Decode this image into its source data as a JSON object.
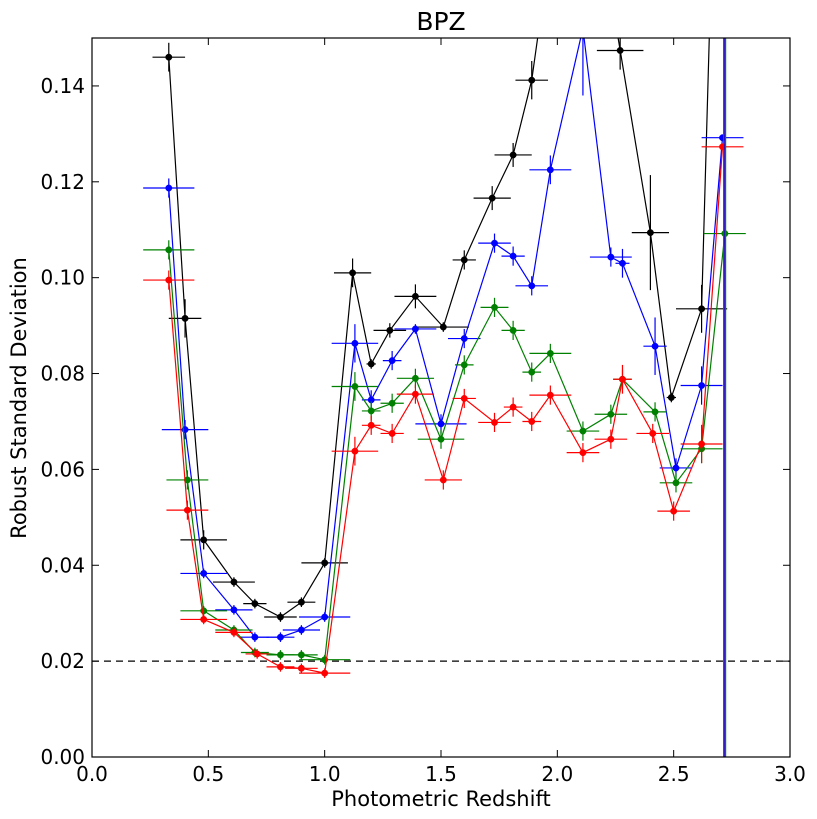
{
  "chart_data": {
    "type": "line",
    "title": "BPZ",
    "xlabel": "Photometric Redshift",
    "ylabel": "Robust Standard Deviation",
    "xlim": [
      0.0,
      3.0
    ],
    "ylim": [
      0.0,
      0.15
    ],
    "xticks": [
      "0.0",
      "0.5",
      "1.0",
      "1.5",
      "2.0",
      "2.5",
      "3.0"
    ],
    "yticks": [
      "0.00",
      "0.02",
      "0.04",
      "0.06",
      "0.08",
      "0.10",
      "0.12",
      "0.14"
    ],
    "grid": false,
    "reference_line": {
      "y": 0.02,
      "style": "dashed",
      "color": "#000000"
    },
    "series": [
      {
        "color": "#000000",
        "points": [
          {
            "x": 0.33,
            "y": 0.146,
            "xerr": 0.07,
            "yerr": 0.003
          },
          {
            "x": 0.4,
            "y": 0.0915,
            "xerr": 0.07,
            "yerr": 0.004
          },
          {
            "x": 0.48,
            "y": 0.0453,
            "xerr": 0.1,
            "yerr": 0.002
          },
          {
            "x": 0.61,
            "y": 0.0365,
            "xerr": 0.09,
            "yerr": 0.001
          },
          {
            "x": 0.7,
            "y": 0.032,
            "xerr": 0.05,
            "yerr": 0.001
          },
          {
            "x": 0.81,
            "y": 0.0292,
            "xerr": 0.07,
            "yerr": 0.001
          },
          {
            "x": 0.9,
            "y": 0.0323,
            "xerr": 0.06,
            "yerr": 0.001
          },
          {
            "x": 1.0,
            "y": 0.0405,
            "xerr": 0.1,
            "yerr": 0.001
          },
          {
            "x": 1.12,
            "y": 0.101,
            "xerr": 0.08,
            "yerr": 0.003
          },
          {
            "x": 1.2,
            "y": 0.082,
            "xerr": 0.02,
            "yerr": 0.001
          },
          {
            "x": 1.28,
            "y": 0.089,
            "xerr": 0.07,
            "yerr": 0.0015
          },
          {
            "x": 1.39,
            "y": 0.0961,
            "xerr": 0.09,
            "yerr": 0.0025
          },
          {
            "x": 1.51,
            "y": 0.0897,
            "xerr": 0.11,
            "yerr": 0.001
          },
          {
            "x": 1.6,
            "y": 0.1037,
            "xerr": 0.05,
            "yerr": 0.002
          },
          {
            "x": 1.72,
            "y": 0.1166,
            "xerr": 0.08,
            "yerr": 0.0025
          },
          {
            "x": 1.81,
            "y": 0.1256,
            "xerr": 0.08,
            "yerr": 0.0025
          },
          {
            "x": 1.89,
            "y": 0.1412,
            "xerr": 0.07,
            "yerr": 0.004
          },
          {
            "x": 1.95,
            "y": 0.162,
            "xerr": 0.05,
            "yerr": 0.005
          },
          {
            "x": 2.22,
            "y": 0.162,
            "xerr": 0.05,
            "yerr": 0.005
          },
          {
            "x": 2.27,
            "y": 0.1474,
            "xerr": 0.1,
            "yerr": 0.004
          },
          {
            "x": 2.4,
            "y": 0.1094,
            "xerr": 0.08,
            "yerr": 0.012
          },
          {
            "x": 2.49,
            "y": 0.075,
            "xerr": 0.02,
            "yerr": 0.001
          },
          {
            "x": 2.62,
            "y": 0.0935,
            "xerr": 0.11,
            "yerr": 0.005
          },
          {
            "x": 2.66,
            "y": 0.162,
            "xerr": 0.0,
            "yerr": 0.0
          }
        ]
      },
      {
        "color": "#0000ff",
        "points": [
          {
            "x": 0.33,
            "y": 0.1187,
            "xerr": 0.11,
            "yerr": 0.002
          },
          {
            "x": 0.4,
            "y": 0.0683,
            "xerr": 0.1,
            "yerr": 0.002
          },
          {
            "x": 0.48,
            "y": 0.0383,
            "xerr": 0.1,
            "yerr": 0.001
          },
          {
            "x": 0.61,
            "y": 0.0307,
            "xerr": 0.08,
            "yerr": 0.001
          },
          {
            "x": 0.7,
            "y": 0.025,
            "xerr": 0.06,
            "yerr": 0.001
          },
          {
            "x": 0.81,
            "y": 0.025,
            "xerr": 0.06,
            "yerr": 0.001
          },
          {
            "x": 0.9,
            "y": 0.0265,
            "xerr": 0.08,
            "yerr": 0.001
          },
          {
            "x": 1.0,
            "y": 0.0292,
            "xerr": 0.11,
            "yerr": 0.001
          },
          {
            "x": 1.13,
            "y": 0.0863,
            "xerr": 0.1,
            "yerr": 0.004
          },
          {
            "x": 1.2,
            "y": 0.0745,
            "xerr": 0.04,
            "yerr": 0.002
          },
          {
            "x": 1.29,
            "y": 0.0827,
            "xerr": 0.04,
            "yerr": 0.002
          },
          {
            "x": 1.39,
            "y": 0.0893,
            "xerr": 0.09,
            "yerr": 0.001
          },
          {
            "x": 1.5,
            "y": 0.0695,
            "xerr": 0.11,
            "yerr": 0.002
          },
          {
            "x": 1.6,
            "y": 0.0873,
            "xerr": 0.07,
            "yerr": 0.002
          },
          {
            "x": 1.73,
            "y": 0.1072,
            "xerr": 0.07,
            "yerr": 0.002
          },
          {
            "x": 1.81,
            "y": 0.1045,
            "xerr": 0.05,
            "yerr": 0.002
          },
          {
            "x": 1.89,
            "y": 0.0983,
            "xerr": 0.07,
            "yerr": 0.002
          },
          {
            "x": 1.97,
            "y": 0.1225,
            "xerr": 0.09,
            "yerr": 0.003
          },
          {
            "x": 2.11,
            "y": 0.152,
            "xerr": 0.0,
            "yerr": 0.014
          },
          {
            "x": 2.23,
            "y": 0.1043,
            "xerr": 0.09,
            "yerr": 0.002
          },
          {
            "x": 2.28,
            "y": 0.103,
            "xerr": 0.03,
            "yerr": 0.003
          },
          {
            "x": 2.42,
            "y": 0.0857,
            "xerr": 0.05,
            "yerr": 0.006
          },
          {
            "x": 2.51,
            "y": 0.0603,
            "xerr": 0.07,
            "yerr": 0.002
          },
          {
            "x": 2.62,
            "y": 0.0775,
            "xerr": 0.09,
            "yerr": 0.004
          },
          {
            "x": 2.71,
            "y": 0.1292,
            "xerr": 0.09,
            "yerr": 0.0
          }
        ]
      },
      {
        "color": "#008000",
        "points": [
          {
            "x": 0.33,
            "y": 0.1058,
            "xerr": 0.11,
            "yerr": 0.002
          },
          {
            "x": 0.41,
            "y": 0.0578,
            "xerr": 0.09,
            "yerr": 0.002
          },
          {
            "x": 0.48,
            "y": 0.0305,
            "xerr": 0.1,
            "yerr": 0.001
          },
          {
            "x": 0.61,
            "y": 0.0265,
            "xerr": 0.08,
            "yerr": 0.001
          },
          {
            "x": 0.7,
            "y": 0.0218,
            "xerr": 0.06,
            "yerr": 0.001
          },
          {
            "x": 0.81,
            "y": 0.0213,
            "xerr": 0.06,
            "yerr": 0.001
          },
          {
            "x": 0.9,
            "y": 0.0213,
            "xerr": 0.07,
            "yerr": 0.001
          },
          {
            "x": 1.0,
            "y": 0.0203,
            "xerr": 0.11,
            "yerr": 0.001
          },
          {
            "x": 1.13,
            "y": 0.0773,
            "xerr": 0.1,
            "yerr": 0.003
          },
          {
            "x": 1.2,
            "y": 0.0722,
            "xerr": 0.04,
            "yerr": 0.002
          },
          {
            "x": 1.29,
            "y": 0.0738,
            "xerr": 0.05,
            "yerr": 0.002
          },
          {
            "x": 1.39,
            "y": 0.079,
            "xerr": 0.08,
            "yerr": 0.002
          },
          {
            "x": 1.5,
            "y": 0.0663,
            "xerr": 0.1,
            "yerr": 0.002
          },
          {
            "x": 1.6,
            "y": 0.0818,
            "xerr": 0.04,
            "yerr": 0.002
          },
          {
            "x": 1.73,
            "y": 0.0938,
            "xerr": 0.06,
            "yerr": 0.002
          },
          {
            "x": 1.81,
            "y": 0.089,
            "xerr": 0.05,
            "yerr": 0.002
          },
          {
            "x": 1.89,
            "y": 0.0803,
            "xerr": 0.04,
            "yerr": 0.002
          },
          {
            "x": 1.97,
            "y": 0.0842,
            "xerr": 0.09,
            "yerr": 0.002
          },
          {
            "x": 2.11,
            "y": 0.068,
            "xerr": 0.07,
            "yerr": 0.002
          },
          {
            "x": 2.23,
            "y": 0.0715,
            "xerr": 0.07,
            "yerr": 0.002
          },
          {
            "x": 2.28,
            "y": 0.0788,
            "xerr": 0.04,
            "yerr": 0.002
          },
          {
            "x": 2.42,
            "y": 0.072,
            "xerr": 0.05,
            "yerr": 0.002
          },
          {
            "x": 2.51,
            "y": 0.0572,
            "xerr": 0.07,
            "yerr": 0.002
          },
          {
            "x": 2.62,
            "y": 0.0643,
            "xerr": 0.09,
            "yerr": 0.003
          },
          {
            "x": 2.72,
            "y": 0.1092,
            "xerr": 0.09,
            "yerr": 0.0
          }
        ]
      },
      {
        "color": "#ff0000",
        "points": [
          {
            "x": 0.33,
            "y": 0.0995,
            "xerr": 0.11,
            "yerr": 0.002
          },
          {
            "x": 0.41,
            "y": 0.0515,
            "xerr": 0.09,
            "yerr": 0.002
          },
          {
            "x": 0.48,
            "y": 0.0287,
            "xerr": 0.1,
            "yerr": 0.001
          },
          {
            "x": 0.61,
            "y": 0.026,
            "xerr": 0.08,
            "yerr": 0.001
          },
          {
            "x": 0.71,
            "y": 0.0215,
            "xerr": 0.05,
            "yerr": 0.001
          },
          {
            "x": 0.81,
            "y": 0.0188,
            "xerr": 0.06,
            "yerr": 0.001
          },
          {
            "x": 0.9,
            "y": 0.0185,
            "xerr": 0.07,
            "yerr": 0.001
          },
          {
            "x": 1.0,
            "y": 0.0175,
            "xerr": 0.11,
            "yerr": 0.001
          },
          {
            "x": 1.13,
            "y": 0.0638,
            "xerr": 0.1,
            "yerr": 0.003
          },
          {
            "x": 1.2,
            "y": 0.0692,
            "xerr": 0.04,
            "yerr": 0.002
          },
          {
            "x": 1.29,
            "y": 0.0675,
            "xerr": 0.05,
            "yerr": 0.002
          },
          {
            "x": 1.39,
            "y": 0.0757,
            "xerr": 0.08,
            "yerr": 0.002
          },
          {
            "x": 1.51,
            "y": 0.0578,
            "xerr": 0.08,
            "yerr": 0.002
          },
          {
            "x": 1.6,
            "y": 0.0748,
            "xerr": 0.05,
            "yerr": 0.002
          },
          {
            "x": 1.73,
            "y": 0.0698,
            "xerr": 0.07,
            "yerr": 0.002
          },
          {
            "x": 1.81,
            "y": 0.073,
            "xerr": 0.04,
            "yerr": 0.002
          },
          {
            "x": 1.89,
            "y": 0.07,
            "xerr": 0.04,
            "yerr": 0.002
          },
          {
            "x": 1.97,
            "y": 0.0755,
            "xerr": 0.09,
            "yerr": 0.002
          },
          {
            "x": 2.11,
            "y": 0.0635,
            "xerr": 0.07,
            "yerr": 0.002
          },
          {
            "x": 2.23,
            "y": 0.0663,
            "xerr": 0.07,
            "yerr": 0.002
          },
          {
            "x": 2.28,
            "y": 0.0788,
            "xerr": 0.04,
            "yerr": 0.003
          },
          {
            "x": 2.41,
            "y": 0.0675,
            "xerr": 0.07,
            "yerr": 0.002
          },
          {
            "x": 2.5,
            "y": 0.0513,
            "xerr": 0.07,
            "yerr": 0.002
          },
          {
            "x": 2.62,
            "y": 0.0653,
            "xerr": 0.09,
            "yerr": 0.004
          },
          {
            "x": 2.71,
            "y": 0.1273,
            "xerr": 0.09,
            "yerr": 0.0
          }
        ]
      }
    ],
    "vertical_lines": [
      {
        "x": 2.715,
        "color": "#ff0000"
      },
      {
        "x": 2.72,
        "color": "#0000ff"
      },
      {
        "x": 2.723,
        "color": "#008000"
      }
    ]
  }
}
